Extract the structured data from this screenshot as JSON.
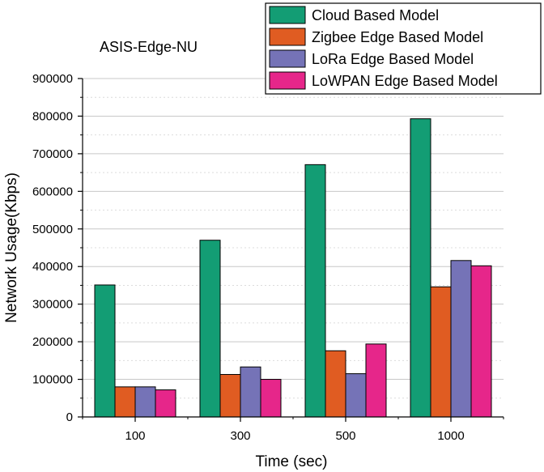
{
  "chart_data": {
    "type": "bar",
    "title": "ASIS-Edge-NU",
    "xlabel": "Time (sec)",
    "ylabel": "Network Usage(Kbps)",
    "categories": [
      "100",
      "300",
      "500",
      "1000"
    ],
    "ylim": [
      0,
      900000
    ],
    "yticks": [
      "0",
      "100000",
      "200000",
      "300000",
      "400000",
      "500000",
      "600000",
      "700000",
      "800000",
      "900000"
    ],
    "grid": true,
    "legend_position": "top-right",
    "series": [
      {
        "name": "Cloud Based Model",
        "color": "#139D74",
        "values": [
          351000,
          470000,
          671000,
          793000
        ]
      },
      {
        "name": "Zigbee Edge Based Model",
        "color": "#E05C22",
        "values": [
          80000,
          113000,
          176000,
          346000
        ]
      },
      {
        "name": "LoRa Edge Based Model",
        "color": "#7573B7",
        "values": [
          80000,
          133000,
          115000,
          416000
        ]
      },
      {
        "name": "LoWPAN Edge Based Model",
        "color": "#E6268A",
        "values": [
          72000,
          100000,
          194000,
          402000
        ]
      }
    ]
  }
}
